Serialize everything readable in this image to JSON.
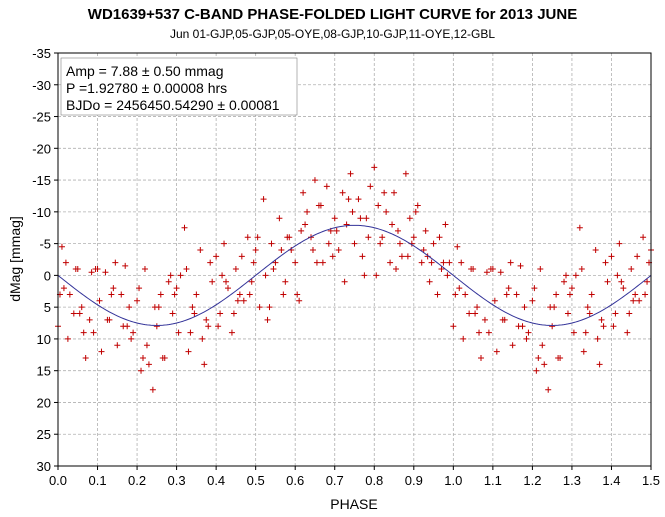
{
  "chart_data": {
    "type": "scatter",
    "title": "WD1639+537 C-BAND PHASE-FOLDED LIGHT CURVE for 2013 JUNE",
    "subtitle": "Jun 01-GJP,05-GJP,05-OYE,08-GJP,10-GJP,11-OYE,12-GBL",
    "xlabel": "PHASE",
    "ylabel": "dMag [mmag]",
    "xlim": [
      0,
      1.5
    ],
    "ylim": [
      -35,
      30
    ],
    "y_inverted": true,
    "x_ticks": [
      "0.0",
      "0.1",
      "0.2",
      "0.3",
      "0.4",
      "0.5",
      "0.6",
      "0.7",
      "0.8",
      "0.9",
      "1.0",
      "1.1",
      "1.2",
      "1.3",
      "1.4",
      "1.5"
    ],
    "y_ticks": [
      "-35",
      "-30",
      "-25",
      "-20",
      "-15",
      "-10",
      "-5",
      "0",
      "5",
      "10",
      "15",
      "20",
      "25",
      "30"
    ],
    "grid": true,
    "annotations": [
      "Amp = 7.88 ± 0.50 mmag",
      "P =1.92780 ± 0.00008 hrs",
      "BJDo = 2456450.54290 ± 0.00081"
    ],
    "annotation_placement": "top-left",
    "colors": {
      "points": "#c00000",
      "fit": "#333399",
      "grid": "#b0b0b0"
    },
    "fit": {
      "amplitude": 7.88,
      "peak_phase": 0.75,
      "period_phase": 1.0
    },
    "series": [
      {
        "marker": "+",
        "x": [
          0.0,
          0.01,
          0.02,
          0.03,
          0.04,
          0.05,
          0.06,
          0.07,
          0.08,
          0.09,
          0.1,
          0.11,
          0.12,
          0.13,
          0.14,
          0.15,
          0.16,
          0.17,
          0.18,
          0.19,
          0.2,
          0.21,
          0.22,
          0.23,
          0.24,
          0.25,
          0.26,
          0.27,
          0.28,
          0.29,
          0.3,
          0.31,
          0.32,
          0.33,
          0.34,
          0.35,
          0.36,
          0.37,
          0.38,
          0.39,
          0.4,
          0.41,
          0.42,
          0.43,
          0.44,
          0.45,
          0.46,
          0.47,
          0.48,
          0.49,
          0.5,
          0.51,
          0.52,
          0.53,
          0.54,
          0.55,
          0.56,
          0.57,
          0.58,
          0.59,
          0.6,
          0.61,
          0.62,
          0.63,
          0.64,
          0.65,
          0.66,
          0.67,
          0.68,
          0.69,
          0.7,
          0.71,
          0.72,
          0.73,
          0.74,
          0.75,
          0.76,
          0.77,
          0.78,
          0.79,
          0.8,
          0.81,
          0.82,
          0.83,
          0.84,
          0.85,
          0.86,
          0.87,
          0.88,
          0.89,
          0.9,
          0.91,
          0.92,
          0.93,
          0.94,
          0.95,
          0.96,
          0.97,
          0.98,
          0.99,
          0.005,
          0.025,
          0.045,
          0.065,
          0.085,
          0.105,
          0.125,
          0.145,
          0.165,
          0.185,
          0.205,
          0.225,
          0.245,
          0.265,
          0.285,
          0.305,
          0.325,
          0.345,
          0.365,
          0.385,
          0.405,
          0.425,
          0.445,
          0.465,
          0.485,
          0.505,
          0.525,
          0.545,
          0.565,
          0.585,
          0.605,
          0.625,
          0.645,
          0.665,
          0.685,
          0.705,
          0.725,
          0.745,
          0.765,
          0.785,
          0.805,
          0.825,
          0.845,
          0.865,
          0.885,
          0.905,
          0.925,
          0.945,
          0.965,
          0.985,
          0.015,
          0.055,
          0.095,
          0.135,
          0.175,
          0.215,
          0.255,
          0.295,
          0.335,
          0.375,
          0.415,
          0.455,
          0.495,
          0.535,
          0.575,
          0.615,
          0.655,
          0.695,
          0.735,
          0.775,
          0.815,
          0.855,
          0.895,
          0.935,
          0.975
        ],
        "y": [
          8,
          -4.5,
          -2,
          3,
          6,
          -1,
          5,
          13,
          7,
          9,
          -1,
          12,
          -0.5,
          7,
          2,
          11,
          3,
          -1.5,
          5,
          9,
          4,
          15,
          -1,
          14,
          18,
          8,
          3,
          13,
          1,
          6,
          2,
          0,
          -7.5,
          12,
          5,
          3,
          -4,
          14,
          8,
          1,
          -3,
          6,
          -5,
          2,
          9,
          -1,
          3,
          4,
          -6,
          1,
          -4,
          5,
          -12,
          7,
          -5,
          -2,
          -9,
          3,
          -6,
          -4,
          -2,
          4,
          -13,
          -10,
          -6,
          -15,
          -11,
          -2,
          -14,
          -7,
          -9,
          -4,
          -13,
          -8,
          -16,
          -5,
          -12,
          -3,
          -9,
          -14,
          -17,
          -11,
          -6,
          -10,
          -2,
          -13,
          -7,
          -3,
          -16,
          -9,
          -6,
          -11,
          -2,
          -7,
          1,
          -5,
          3,
          -1,
          -8,
          -2,
          3,
          10,
          -1,
          9,
          -0.5,
          4,
          7,
          -2,
          8,
          10,
          2,
          11,
          5,
          13,
          0,
          9,
          -1,
          6,
          10,
          -2,
          8,
          1,
          6,
          -3,
          3,
          -6,
          0,
          -1,
          -4,
          -6,
          3,
          -8,
          -4,
          -11,
          -5,
          -7,
          1,
          -10,
          -9,
          -6,
          0,
          -13,
          -8,
          -5,
          -3,
          -10,
          -4,
          -2,
          -6,
          0,
          2,
          6,
          -1,
          3,
          8,
          13,
          5,
          3,
          9,
          7,
          0,
          4,
          -2,
          5,
          1,
          -7,
          -2,
          -3,
          -12,
          0,
          -5,
          -1,
          -5,
          -3,
          -2
        ]
      }
    ]
  }
}
